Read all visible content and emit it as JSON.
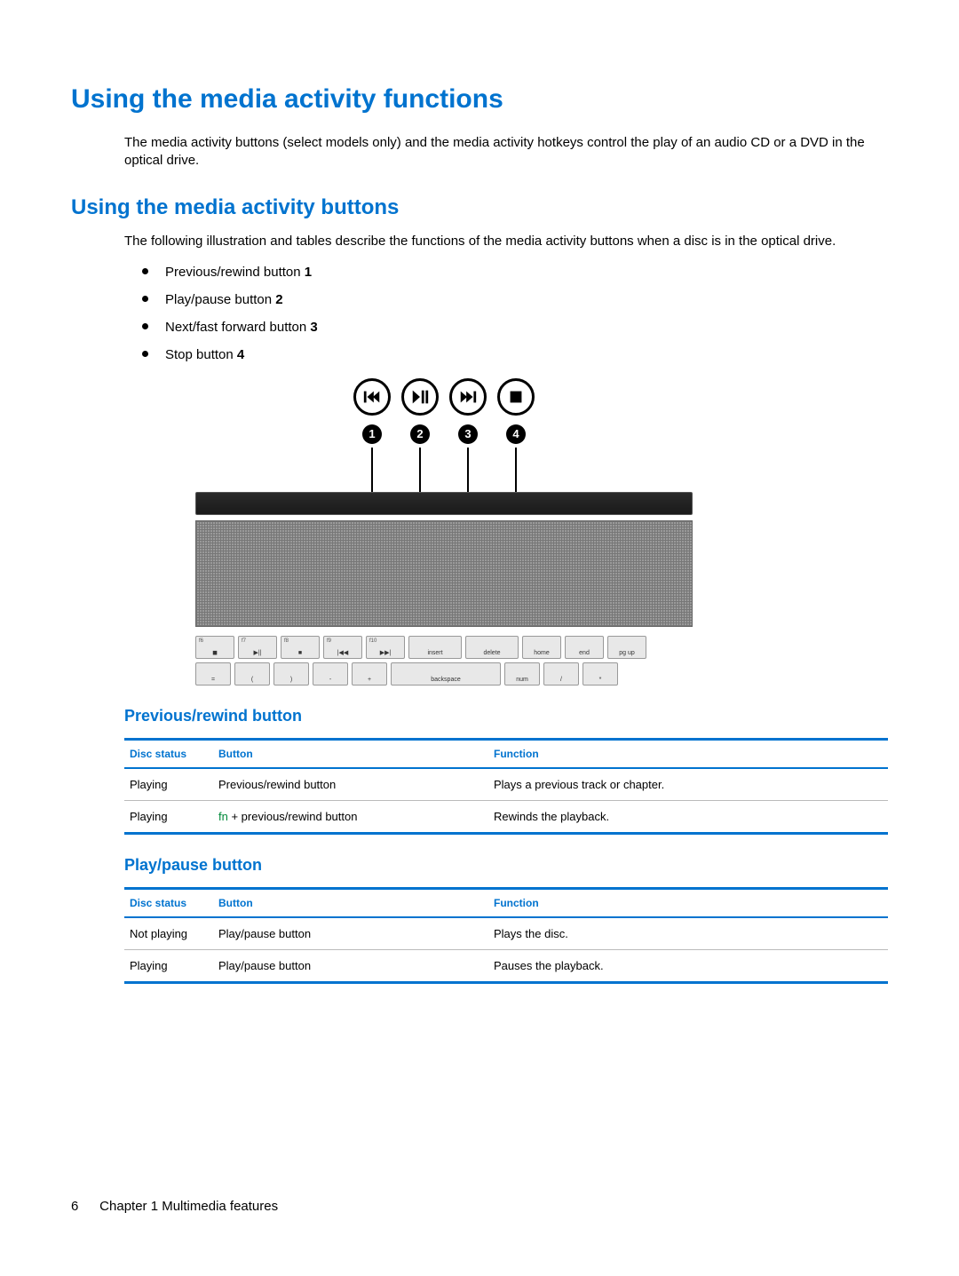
{
  "colors": {
    "heading": "#0073cf",
    "table_rule": "#0073cf",
    "fn_key": "#008a3a",
    "text": "#000000",
    "background": "#ffffff"
  },
  "headings": {
    "h1": "Using the media activity functions",
    "h2": "Using the media activity buttons",
    "h3a": "Previous/rewind button",
    "h3b": "Play/pause button"
  },
  "paragraphs": {
    "p1": "The media activity buttons (select models only) and the media activity hotkeys control the play of an audio CD or a DVD in the optical drive.",
    "p2": "The following illustration and tables describe the functions of the media activity buttons when a disc is in the optical drive."
  },
  "bullets": [
    {
      "label": "Previous/rewind button ",
      "num": "1"
    },
    {
      "label": "Play/pause button ",
      "num": "2"
    },
    {
      "label": "Next/fast forward button ",
      "num": "3"
    },
    {
      "label": "Stop button ",
      "num": "4"
    }
  ],
  "callouts": [
    "1",
    "2",
    "3",
    "4"
  ],
  "keyboard": {
    "row1": [
      {
        "sub": "f6",
        "label": "◼"
      },
      {
        "sub": "f7",
        "label": "▶||"
      },
      {
        "sub": "f8",
        "label": "■"
      },
      {
        "sub": "f9",
        "label": "|◀◀"
      },
      {
        "sub": "f10",
        "label": "▶▶|"
      },
      {
        "sub": "",
        "label": "insert",
        "wide": true
      },
      {
        "sub": "",
        "label": "delete",
        "wide": true
      },
      {
        "sub": "",
        "label": "home"
      },
      {
        "sub": "",
        "label": "end"
      },
      {
        "sub": "",
        "label": "pg up"
      }
    ],
    "row2": [
      {
        "label": "="
      },
      {
        "label": "("
      },
      {
        "label": ")"
      },
      {
        "label": "-"
      },
      {
        "label": "+"
      },
      {
        "label": "backspace",
        "wide": true,
        "span2": true
      },
      {
        "label": "num"
      },
      {
        "label": "/"
      },
      {
        "label": "*"
      }
    ]
  },
  "table_headers": {
    "status": "Disc status",
    "button": "Button",
    "function": "Function"
  },
  "table_prev": [
    {
      "status": "Playing",
      "button_pre": "",
      "button": "Previous/rewind button",
      "function": "Plays a previous track or chapter."
    },
    {
      "status": "Playing",
      "button_pre": "fn",
      "button": " + previous/rewind button",
      "function": "Rewinds the playback."
    }
  ],
  "table_play": [
    {
      "status": "Not playing",
      "button_pre": "",
      "button": "Play/pause button",
      "function": "Plays the disc."
    },
    {
      "status": "Playing",
      "button_pre": "",
      "button": "Play/pause button",
      "function": "Pauses the playback."
    }
  ],
  "footer": {
    "page_number": "6",
    "chapter": "Chapter 1   Multimedia features"
  }
}
